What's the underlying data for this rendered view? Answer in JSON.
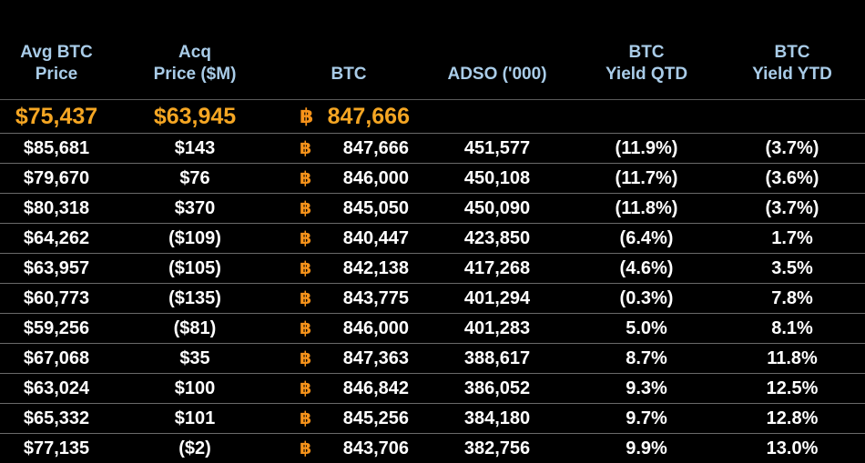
{
  "headers": [
    {
      "line1": "Avg BTC",
      "line2": "Price"
    },
    {
      "line1": "Acq",
      "line2": "Price ($M)"
    },
    {
      "line1": "",
      "line2": "BTC"
    },
    {
      "line1": "",
      "line2": "ADSO ('000)"
    },
    {
      "line1": "BTC",
      "line2": "Yield QTD"
    },
    {
      "line1": "BTC",
      "line2": "Yield YTD"
    }
  ],
  "summary": {
    "avg_btc_price": "$75,437",
    "acq_price": "$63,945",
    "btc_symbol": "฿",
    "btc": "847,666"
  },
  "rows": [
    {
      "avg": "$85,681",
      "acq": "$143",
      "btc": "847,666",
      "adso": "451,577",
      "qtd": "(11.9%)",
      "ytd": "(3.7%)"
    },
    {
      "avg": "$79,670",
      "acq": "$76",
      "btc": "846,000",
      "adso": "450,108",
      "qtd": "(11.7%)",
      "ytd": "(3.6%)"
    },
    {
      "avg": "$80,318",
      "acq": "$370",
      "btc": "845,050",
      "adso": "450,090",
      "qtd": "(11.8%)",
      "ytd": "(3.7%)"
    },
    {
      "avg": "$64,262",
      "acq": "($109)",
      "btc": "840,447",
      "adso": "423,850",
      "qtd": "(6.4%)",
      "ytd": "1.7%"
    },
    {
      "avg": "$63,957",
      "acq": "($105)",
      "btc": "842,138",
      "adso": "417,268",
      "qtd": "(4.6%)",
      "ytd": "3.5%"
    },
    {
      "avg": "$60,773",
      "acq": "($135)",
      "btc": "843,775",
      "adso": "401,294",
      "qtd": "(0.3%)",
      "ytd": "7.8%"
    },
    {
      "avg": "$59,256",
      "acq": "($81)",
      "btc": "846,000",
      "adso": "401,283",
      "qtd": "5.0%",
      "ytd": "8.1%"
    },
    {
      "avg": "$67,068",
      "acq": "$35",
      "btc": "847,363",
      "adso": "388,617",
      "qtd": "8.7%",
      "ytd": "11.8%"
    },
    {
      "avg": "$63,024",
      "acq": "$100",
      "btc": "846,842",
      "adso": "386,052",
      "qtd": "9.3%",
      "ytd": "12.5%"
    },
    {
      "avg": "$65,332",
      "acq": "$101",
      "btc": "845,256",
      "adso": "384,180",
      "qtd": "9.7%",
      "ytd": "12.8%"
    },
    {
      "avg": "$77,135",
      "acq": "($2)",
      "btc": "843,706",
      "adso": "382,756",
      "qtd": "9.9%",
      "ytd": "13.0%"
    }
  ],
  "colors": {
    "header_text": "#a9cce8",
    "summary_text": "#f5a623",
    "btc_symbol": "#f7931a",
    "row_text": "#ffffff",
    "background": "#000000"
  }
}
